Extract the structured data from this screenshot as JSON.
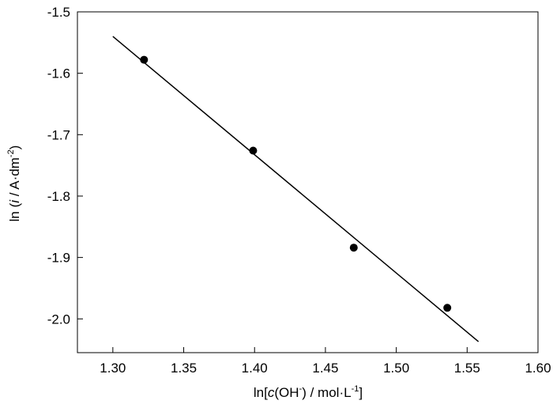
{
  "chart_data": {
    "type": "scatter",
    "x_ticks": [
      "1.30",
      "1.35",
      "1.40",
      "1.45",
      "1.50",
      "1.55",
      "1.60"
    ],
    "y_ticks": [
      "-1.5",
      "-1.6",
      "-1.7",
      "-1.8",
      "-1.9",
      "-2.0"
    ],
    "xlim": [
      1.275,
      1.6
    ],
    "ylim": [
      -2.055,
      -1.5
    ],
    "xlabel": {
      "pre": "ln[",
      "italic": "c",
      "mid": "(OH",
      "sup1": "-",
      "post": ") / mol·L",
      "sup2": "-1",
      "close": "]"
    },
    "ylabel": {
      "pre": "ln (",
      "italic": "i",
      "mid": " / A·dm",
      "sup": "-2",
      "close": ")"
    },
    "points": [
      {
        "x": 1.322,
        "y": -1.578
      },
      {
        "x": 1.399,
        "y": -1.726
      },
      {
        "x": 1.47,
        "y": -1.884
      },
      {
        "x": 1.536,
        "y": -1.982
      }
    ],
    "fit_line": {
      "x": [
        1.3,
        1.558
      ],
      "y": [
        -1.54,
        -2.037
      ]
    },
    "grid": false,
    "marker_color": "#000000",
    "line_color": "#000000"
  }
}
